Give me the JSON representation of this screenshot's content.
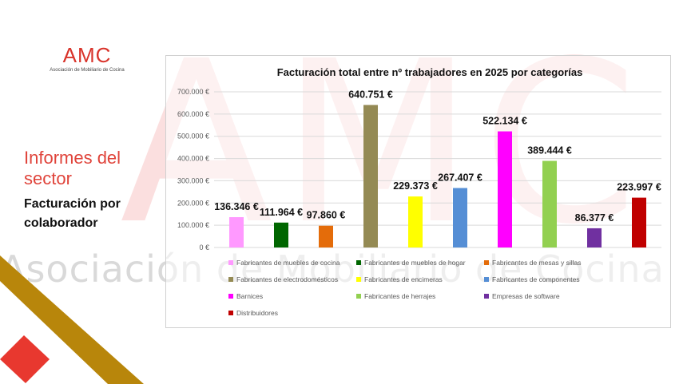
{
  "watermark": {
    "letters": "AMC",
    "text": "Asociación de Mobiliario de Cocina"
  },
  "logo": {
    "main": "AMC",
    "sub": "Asociación de Mobiliario de Cocina"
  },
  "side": {
    "title": "Informes del sector",
    "subtitle": "Facturación por colaborador"
  },
  "colors": {
    "brand_red": "#e0443b",
    "olive": "#b8860b"
  },
  "chart_data": {
    "type": "bar",
    "title": "Facturación total entre nº trabajadores en 2025 por categorías",
    "ylim": [
      0,
      700000
    ],
    "yticks": [
      0,
      100000,
      200000,
      300000,
      400000,
      500000,
      600000,
      700000
    ],
    "ytick_labels": [
      "0 €",
      "100.000 €",
      "200.000 €",
      "300.000 €",
      "400.000 €",
      "500.000 €",
      "600.000 €",
      "700.000 €"
    ],
    "grid": true,
    "legend": "bottom",
    "categories": [
      "Fabricantes de muebles de cocina",
      "Fabricantes de muebles de hogar",
      "Fabricantes de mesas y sillas",
      "Fabricantes de electrodomésticos",
      "Fabricantes de encimeras",
      "Fabricantes de componentes",
      "Barnices",
      "Fabricantes de herrajes",
      "Empresas de software",
      "Distribuidores"
    ],
    "values": [
      136346,
      111964,
      97860,
      640751,
      229373,
      267407,
      522134,
      389444,
      86377,
      223997
    ],
    "value_labels": [
      "136.346 €",
      "111.964 €",
      "97.860 €",
      "640.751 €",
      "229.373 €",
      "267.407 €",
      "522.134 €",
      "389.444 €",
      "86.377 €",
      "223.997 €"
    ],
    "colors": [
      "#ff99ff",
      "#006600",
      "#e46c0a",
      "#948a54",
      "#ffff00",
      "#558ed5",
      "#ff00ff",
      "#92d050",
      "#7030a0",
      "#c00000"
    ]
  }
}
